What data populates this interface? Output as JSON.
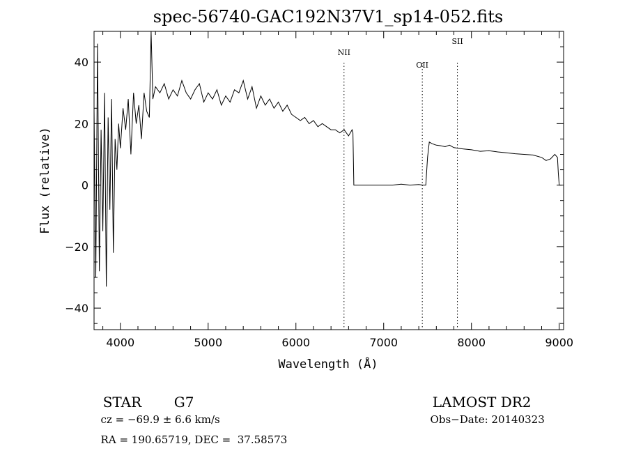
{
  "chart_data": {
    "type": "line",
    "title": "spec-56740-GAC192N37V1_sp14-052.fits",
    "xlabel": "Wavelength (Å)",
    "ylabel": "Flux (relative)",
    "xlim": [
      3700,
      9050
    ],
    "ylim": [
      -47,
      50
    ],
    "x_ticks": [
      4000,
      5000,
      6000,
      7000,
      8000,
      9000
    ],
    "y_ticks": [
      -40,
      -20,
      0,
      20,
      40
    ],
    "grid": false,
    "line_color": "#000000",
    "series": [
      {
        "x": [
          3700,
          3720,
          3740,
          3760,
          3780,
          3800,
          3820,
          3840,
          3860,
          3880,
          3900,
          3920,
          3940,
          3960,
          3980,
          4000,
          4030,
          4060,
          4090,
          4120,
          4150,
          4180,
          4210,
          4240,
          4270,
          4300,
          4330,
          4350,
          4370,
          4400,
          4450,
          4500,
          4550,
          4600,
          4650,
          4700,
          4750,
          4800,
          4850,
          4900,
          4950,
          5000,
          5050,
          5100,
          5150,
          5200,
          5250,
          5300,
          5350,
          5400,
          5450,
          5500,
          5550,
          5600,
          5650,
          5700,
          5750,
          5800,
          5850,
          5900,
          5950,
          6000,
          6050,
          6100,
          6150,
          6200,
          6250,
          6300,
          6350,
          6400,
          6450,
          6500,
          6550,
          6600,
          6640,
          6650,
          6660,
          6670,
          6700,
          6800,
          6900,
          7000,
          7100,
          7200,
          7300,
          7400,
          7450,
          7480,
          7500,
          7520,
          7550,
          7600,
          7650,
          7700,
          7750,
          7800,
          7850,
          7900,
          8000,
          8100,
          8200,
          8300,
          8400,
          8500,
          8600,
          8700,
          8800,
          8850,
          8900,
          8950,
          8980,
          8990,
          9000,
          9030
        ],
        "y": [
          25,
          -30,
          46,
          -28,
          18,
          -15,
          30,
          -33,
          22,
          -8,
          28,
          -22,
          15,
          5,
          20,
          12,
          25,
          18,
          28,
          10,
          30,
          20,
          26,
          15,
          30,
          24,
          22,
          50,
          28,
          32,
          30,
          33,
          28,
          31,
          29,
          34,
          30,
          28,
          31,
          33,
          27,
          30,
          28,
          31,
          26,
          29,
          27,
          31,
          30,
          34,
          28,
          32,
          25,
          29,
          26,
          28,
          25,
          27,
          24,
          26,
          23,
          22,
          21,
          22,
          20,
          21,
          19,
          20,
          19,
          18,
          18,
          17,
          18,
          16,
          18,
          17,
          0,
          0,
          0,
          0,
          0,
          0,
          0,
          0.3,
          0,
          0.2,
          0,
          0,
          9,
          14,
          13.5,
          13,
          12.8,
          12.5,
          13,
          12.2,
          12,
          11.8,
          11.5,
          11,
          11.2,
          10.8,
          10.5,
          10.2,
          10,
          9.8,
          9,
          8,
          8.5,
          10,
          9,
          4,
          0,
          0
        ]
      }
    ],
    "lines": [
      {
        "label": "NII",
        "x": 6548
      },
      {
        "label": "OII",
        "x": 7440
      },
      {
        "label": "SII",
        "x": 7840
      }
    ]
  },
  "info": {
    "type": "STAR",
    "subclass": "G7",
    "survey": "LAMOST DR2",
    "cz": "cz = −69.9 ± 6.6 km/s",
    "obsdate": "Obs−Date: 20140323",
    "radec": "RA = 190.65719, DEC =  37.58573"
  }
}
